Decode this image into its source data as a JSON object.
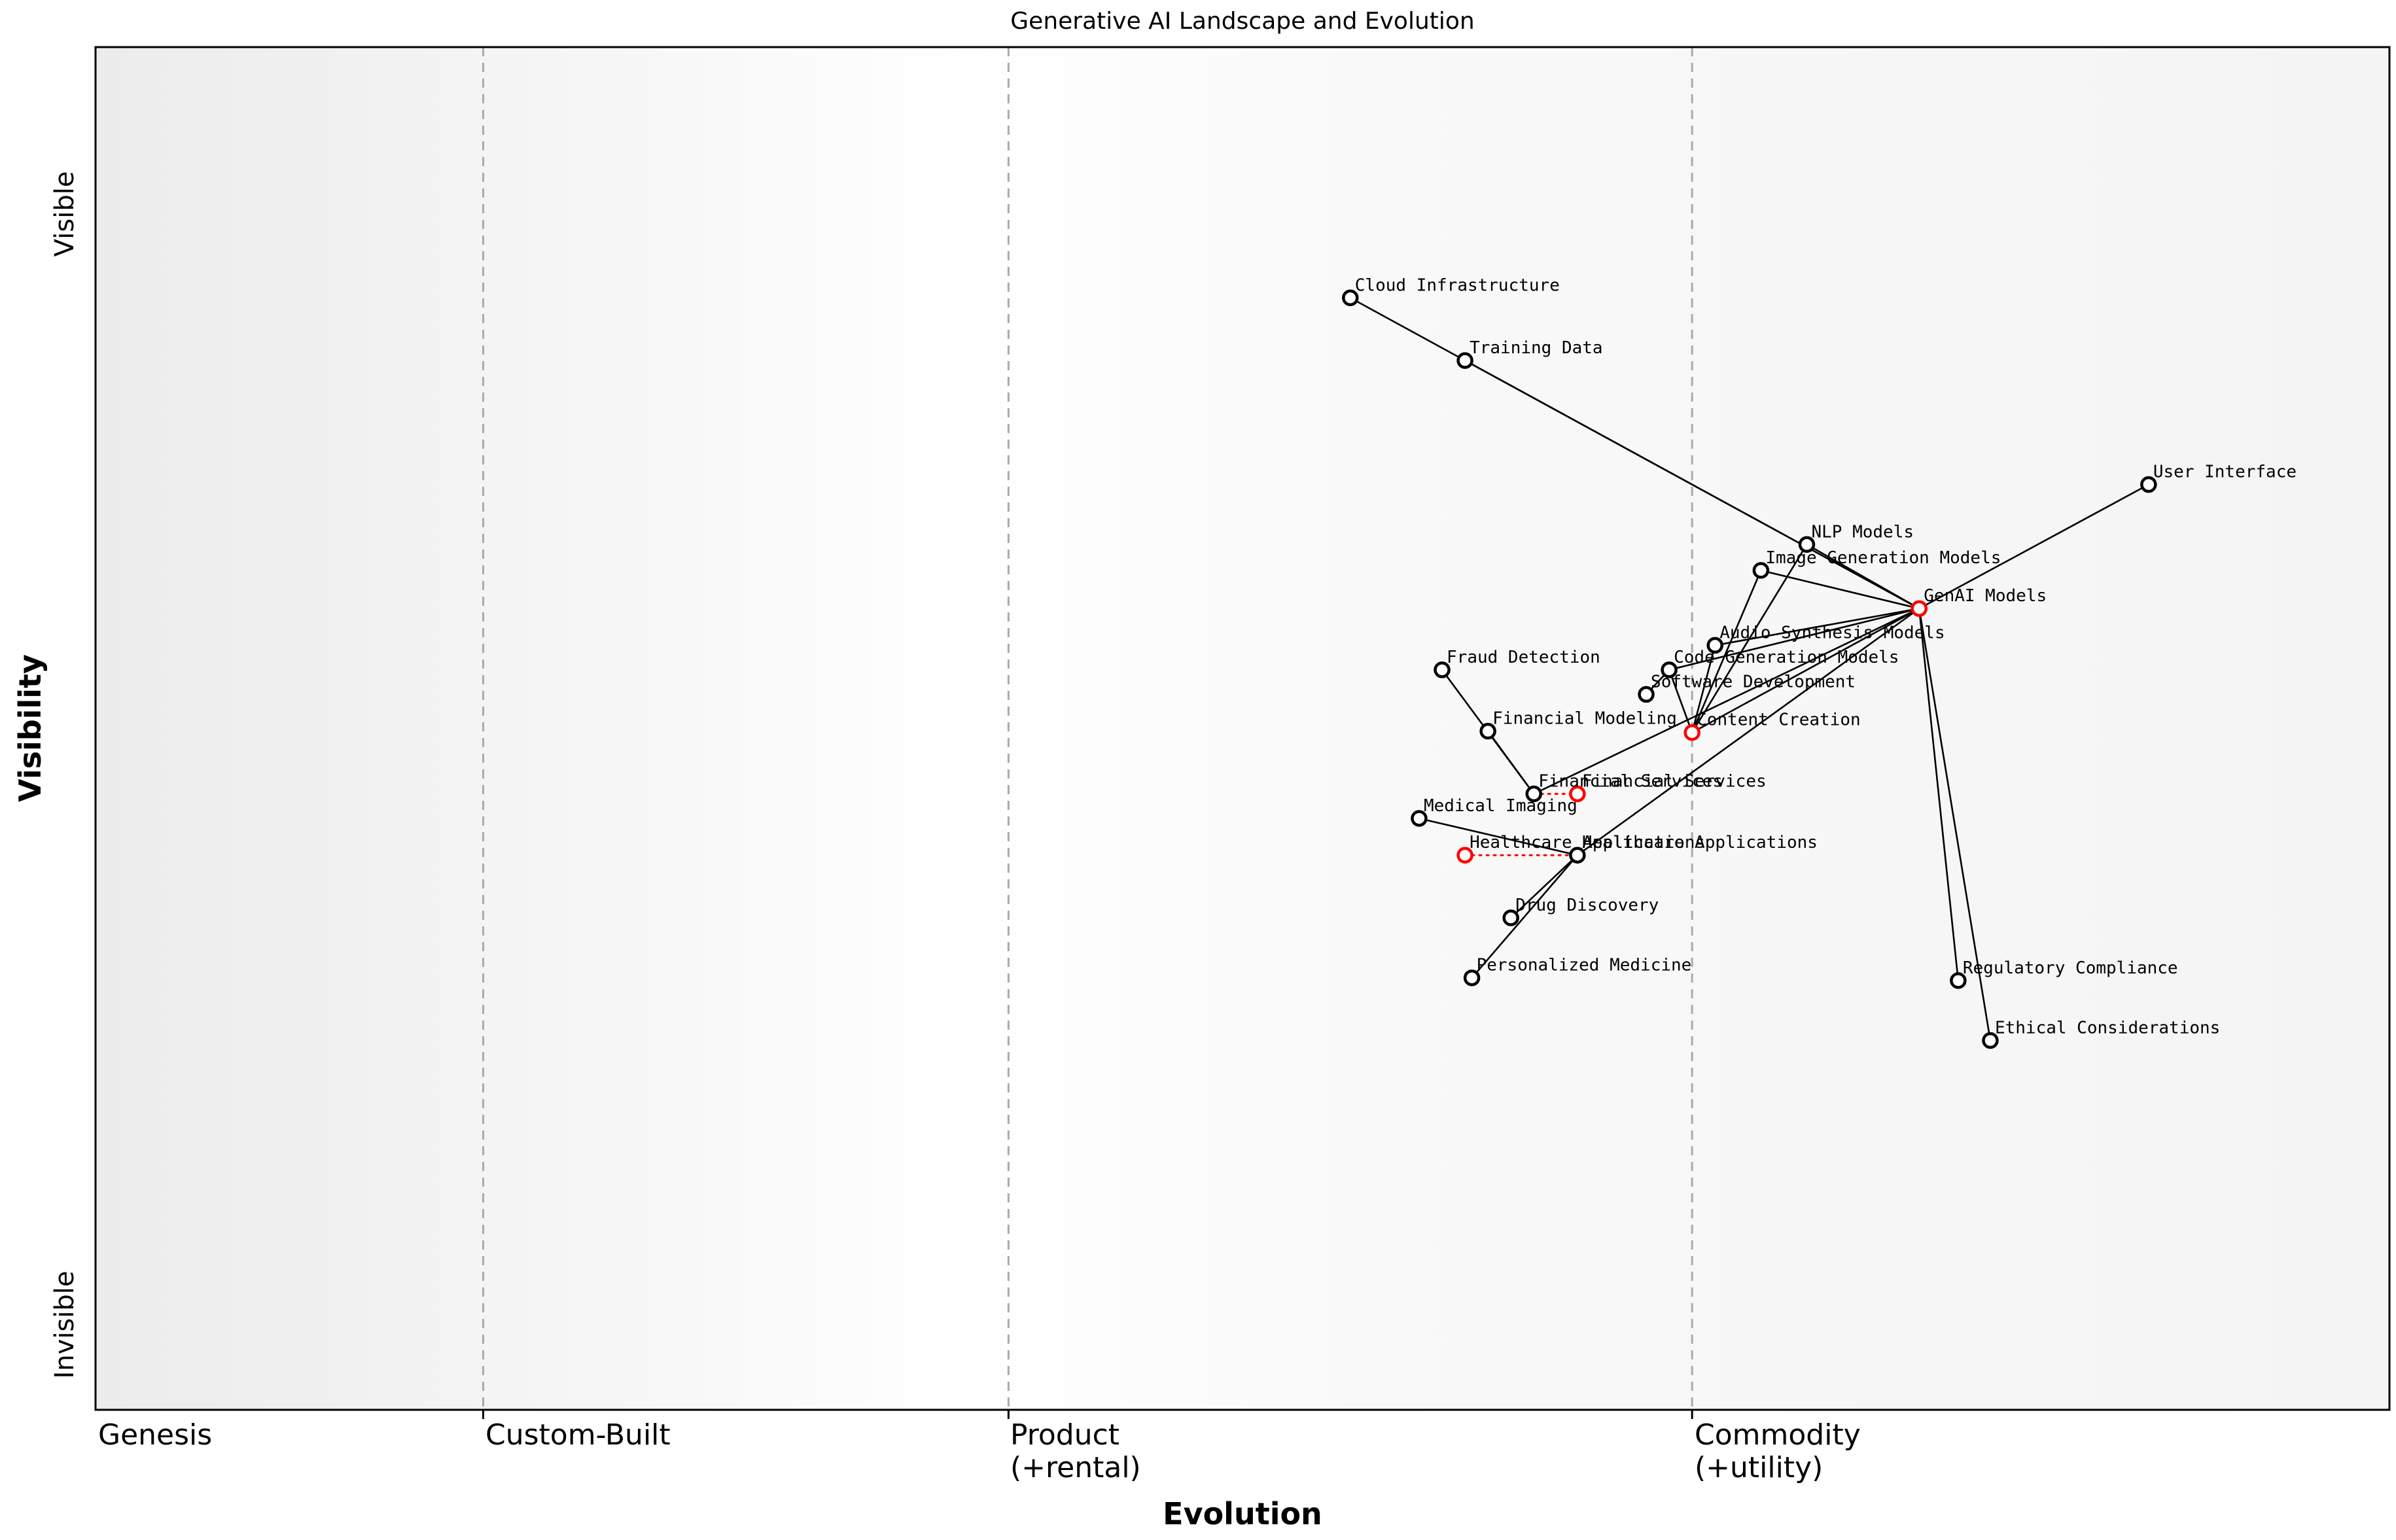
{
  "title": "Generative AI Landscape and Evolution",
  "axis": {
    "x_title": "Evolution",
    "y_title": "Visibility",
    "y_max_label": "Visible",
    "y_min_label": "Invisible",
    "stages": [
      {
        "label": "Genesis",
        "sublabel": "",
        "position": 0.0
      },
      {
        "label": "Custom-Built",
        "sublabel": "",
        "position": 0.169
      },
      {
        "label": "Product",
        "sublabel": "(+rental)",
        "position": 0.398
      },
      {
        "label": "Commodity",
        "sublabel": "(+utility)",
        "position": 0.696
      }
    ]
  },
  "colors": {
    "node_default": "#000000",
    "node_highlight": "#ff0000",
    "node_fill": "#ffffff",
    "edge": "#000000",
    "movement": "#ff0000",
    "gridline": "#aaaaaa",
    "border": "#000000",
    "bg_left": "#ececec",
    "bg_mid": "#ffffff",
    "bg_right": "#f4f4f4"
  },
  "chart_data": {
    "type": "wardley-map",
    "x_axis": {
      "label": "Evolution",
      "stages": [
        "Genesis",
        "Custom-Built",
        "Product (+rental)",
        "Commodity (+utility)"
      ],
      "stage_boundaries": [
        0.0,
        0.169,
        0.398,
        0.696
      ],
      "range": [
        0,
        1
      ]
    },
    "y_axis": {
      "label": "Visibility",
      "top_label": "Visible",
      "bottom_label": "Invisible",
      "range": [
        0,
        1
      ]
    },
    "grid": "dashed-vertical-stage-lines",
    "legend": "none",
    "nodes": [
      {
        "id": "cloud-infrastructure",
        "label": "Cloud Infrastructure",
        "evolution": 0.547,
        "visibility": 0.816,
        "highlight": false
      },
      {
        "id": "training-data",
        "label": "Training Data",
        "evolution": 0.597,
        "visibility": 0.77,
        "highlight": false
      },
      {
        "id": "user-interface",
        "label": "User Interface",
        "evolution": 0.895,
        "visibility": 0.679,
        "highlight": false
      },
      {
        "id": "nlp-models",
        "label": "NLP Models",
        "evolution": 0.746,
        "visibility": 0.635,
        "highlight": false
      },
      {
        "id": "image-generation-models",
        "label": "Image Generation Models",
        "evolution": 0.726,
        "visibility": 0.616,
        "highlight": false
      },
      {
        "id": "genai-models",
        "label": "GenAI Models",
        "evolution": 0.795,
        "visibility": 0.588,
        "highlight": true
      },
      {
        "id": "audio-synthesis-models",
        "label": "Audio Synthesis Models",
        "evolution": 0.706,
        "visibility": 0.561,
        "highlight": false
      },
      {
        "id": "fraud-detection",
        "label": "Fraud Detection",
        "evolution": 0.587,
        "visibility": 0.543,
        "highlight": false
      },
      {
        "id": "code-generation-models",
        "label": "Code Generation Models",
        "evolution": 0.686,
        "visibility": 0.543,
        "highlight": false
      },
      {
        "id": "software-development",
        "label": "Software Development",
        "evolution": 0.676,
        "visibility": 0.525,
        "highlight": false
      },
      {
        "id": "financial-modeling",
        "label": "Financial Modeling",
        "evolution": 0.607,
        "visibility": 0.498,
        "highlight": false
      },
      {
        "id": "content-creation",
        "label": "Content Creation",
        "evolution": 0.696,
        "visibility": 0.497,
        "highlight": true
      },
      {
        "id": "financial-services",
        "label": "Financial Services",
        "evolution": 0.627,
        "visibility": 0.452,
        "highlight": false
      },
      {
        "id": "financial-services-evolved",
        "label": "Financial Services",
        "evolution": 0.646,
        "visibility": 0.452,
        "highlight": true
      },
      {
        "id": "medical-imaging",
        "label": "Medical Imaging",
        "evolution": 0.577,
        "visibility": 0.434,
        "highlight": false
      },
      {
        "id": "healthcare-applications-evolved",
        "label": "Healthcare Applications",
        "evolution": 0.597,
        "visibility": 0.407,
        "highlight": true
      },
      {
        "id": "healthcare-applications",
        "label": "Healthcare Applications",
        "evolution": 0.646,
        "visibility": 0.407,
        "highlight": false
      },
      {
        "id": "drug-discovery",
        "label": "Drug Discovery",
        "evolution": 0.617,
        "visibility": 0.361,
        "highlight": false
      },
      {
        "id": "personalized-medicine",
        "label": "Personalized Medicine",
        "evolution": 0.6,
        "visibility": 0.317,
        "highlight": false
      },
      {
        "id": "regulatory-compliance",
        "label": "Regulatory Compliance",
        "evolution": 0.812,
        "visibility": 0.315,
        "highlight": false
      },
      {
        "id": "ethical-considerations",
        "label": "Ethical Considerations",
        "evolution": 0.826,
        "visibility": 0.271,
        "highlight": false
      }
    ],
    "edges": [
      [
        "genai-models",
        "cloud-infrastructure"
      ],
      [
        "genai-models",
        "training-data"
      ],
      [
        "genai-models",
        "nlp-models"
      ],
      [
        "genai-models",
        "image-generation-models"
      ],
      [
        "genai-models",
        "audio-synthesis-models"
      ],
      [
        "genai-models",
        "code-generation-models"
      ],
      [
        "genai-models",
        "user-interface"
      ],
      [
        "genai-models",
        "content-creation"
      ],
      [
        "genai-models",
        "financial-services"
      ],
      [
        "genai-models",
        "healthcare-applications"
      ],
      [
        "genai-models",
        "regulatory-compliance"
      ],
      [
        "genai-models",
        "ethical-considerations"
      ],
      [
        "content-creation",
        "nlp-models"
      ],
      [
        "content-creation",
        "image-generation-models"
      ],
      [
        "content-creation",
        "audio-synthesis-models"
      ],
      [
        "content-creation",
        "code-generation-models"
      ],
      [
        "software-development",
        "code-generation-models"
      ],
      [
        "financial-services",
        "financial-modeling"
      ],
      [
        "financial-services",
        "fraud-detection"
      ],
      [
        "healthcare-applications",
        "medical-imaging"
      ],
      [
        "healthcare-applications",
        "drug-discovery"
      ],
      [
        "healthcare-applications",
        "personalized-medicine"
      ]
    ],
    "movements": [
      {
        "from": "financial-services",
        "to": "financial-services-evolved"
      },
      {
        "from": "healthcare-applications-evolved",
        "to": "healthcare-applications"
      }
    ]
  }
}
